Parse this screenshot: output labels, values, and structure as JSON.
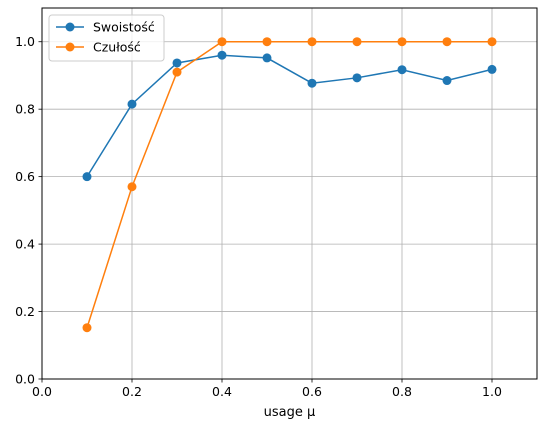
{
  "chart_data": {
    "type": "line",
    "title": "",
    "xlabel": "usage μ",
    "ylabel": "",
    "xlim": [
      0.0,
      1.1
    ],
    "ylim": [
      0.0,
      1.1
    ],
    "xticks": [
      0.0,
      0.2,
      0.4,
      0.6,
      0.8,
      1.0
    ],
    "xtick_labels": [
      "0.0",
      "0.2",
      "0.4",
      "0.6",
      "0.8",
      "1.0"
    ],
    "yticks": [
      0.0,
      0.2,
      0.4,
      0.6,
      0.8,
      1.0
    ],
    "ytick_labels": [
      "0.0",
      "0.2",
      "0.4",
      "0.6",
      "0.8",
      "1.0"
    ],
    "grid": true,
    "legend_position": "top-left",
    "x": [
      0.1,
      0.2,
      0.3,
      0.4,
      0.5,
      0.6,
      0.7,
      0.8,
      0.9,
      1.0
    ],
    "series": [
      {
        "name": "Swoistość",
        "color": "#1f77b4",
        "values": [
          0.6,
          0.815,
          0.937,
          0.96,
          0.952,
          0.877,
          0.893,
          0.917,
          0.885,
          0.918
        ]
      },
      {
        "name": "Czułość",
        "color": "#ff7f0e",
        "values": [
          0.152,
          0.57,
          0.91,
          1.0,
          1.0,
          1.0,
          1.0,
          1.0,
          1.0,
          1.0
        ]
      }
    ]
  }
}
